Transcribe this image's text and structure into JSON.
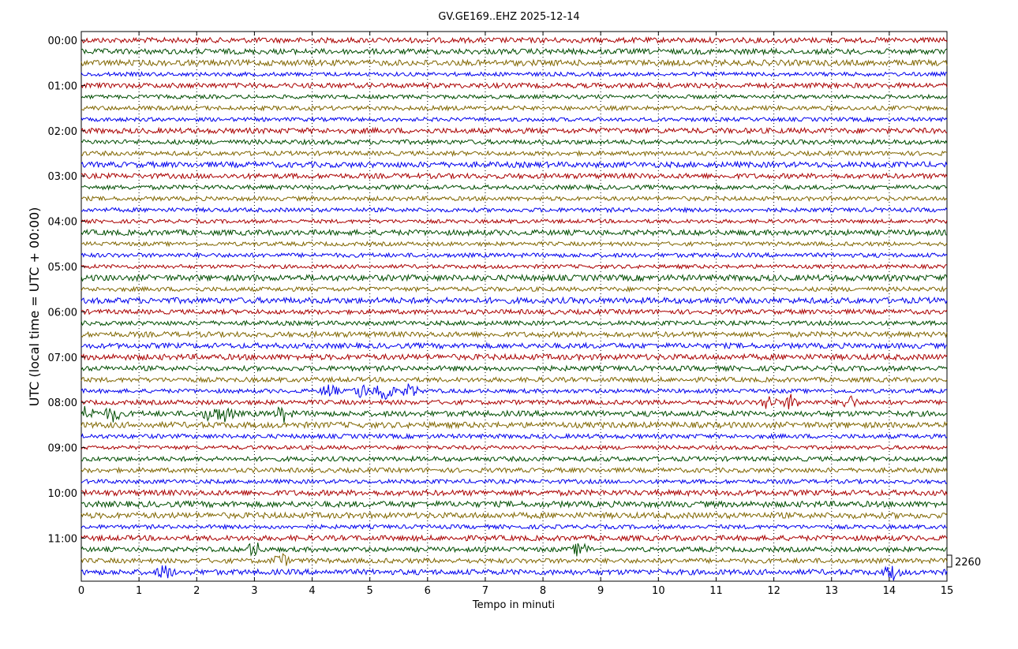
{
  "chart_data": {
    "type": "line",
    "title": "GV.GE169..EHZ 2025-12-14",
    "xlabel": "Tempo in minuti",
    "ylabel": "UTC (local time = UTC + 00:00)",
    "xlim": [
      0,
      15
    ],
    "x_ticks": [
      "0",
      "1",
      "2",
      "3",
      "4",
      "5",
      "6",
      "7",
      "8",
      "9",
      "10",
      "11",
      "12",
      "13",
      "14",
      "15"
    ],
    "y_ticks": [
      "00:00",
      "01:00",
      "02:00",
      "03:00",
      "04:00",
      "05:00",
      "06:00",
      "07:00",
      "08:00",
      "09:00",
      "10:00",
      "11:00"
    ],
    "trace_minutes": 15,
    "trace_count": 48,
    "first_trace": "00:00",
    "last_trace": "11:45",
    "colors": [
      "#aa0000",
      "#004d00",
      "#806600",
      "#0000ee"
    ],
    "grid": true,
    "scale_label": "2260",
    "events": [
      {
        "trace": "07:45",
        "minutes": [
          4.3,
          4.85,
          5.2,
          5.3,
          5.7
        ]
      },
      {
        "trace": "08:00",
        "minutes": [
          11.9,
          12.3,
          13.3
        ]
      },
      {
        "trace": "08:15",
        "minutes": [
          0.1,
          0.55,
          2.25,
          2.5,
          3.5
        ]
      },
      {
        "trace": "11:15",
        "minutes": [
          3.0,
          8.65
        ]
      },
      {
        "trace": "11:30",
        "minutes": [
          3.45
        ]
      },
      {
        "trace": "11:45",
        "minutes": [
          1.45,
          14.05
        ]
      }
    ]
  }
}
